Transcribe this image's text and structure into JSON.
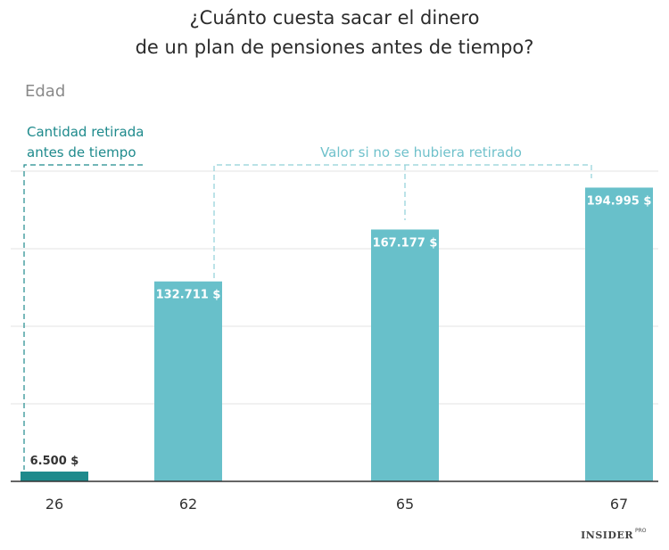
{
  "chart_data": {
    "type": "bar",
    "title_lines": [
      "¿Cuánto cuesta sacar el dinero",
      "de un plan de pensiones antes de tiempo?"
    ],
    "ylabel": "Edad",
    "categories": [
      "26",
      "62",
      "65",
      "67"
    ],
    "values": [
      6500,
      132711,
      167177,
      194995
    ],
    "value_labels": [
      "6.500 $",
      "132.711 $",
      "167.177 $",
      "194.995 $"
    ],
    "ylim": [
      0,
      200000
    ],
    "grid": true,
    "annotations": {
      "withdrawn_lines": [
        "Cantidad retirada",
        "antes de tiempo"
      ],
      "unwithdrawn": "Valor si no se hubiera retirado"
    },
    "colors": {
      "withdrawn": "#1e8a8c",
      "projected": "#68c0ca",
      "grid": "#e3e3e3"
    }
  },
  "brand": {
    "name": "INSIDER",
    "suffix": "PRO"
  }
}
